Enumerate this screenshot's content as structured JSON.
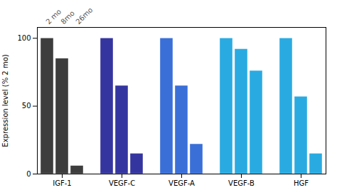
{
  "chart_data": {
    "type": "bar",
    "categories": [
      "IGF-1",
      "VEGF-C",
      "VEGF-A",
      "VEGF-B",
      "HGF"
    ],
    "series": [
      {
        "name": "2 mo",
        "values": [
          100,
          100,
          100,
          100,
          100
        ],
        "colors": [
          "#3d3d3d",
          "#3535a0",
          "#3a6fd8",
          "#29abe2",
          "#29abe2"
        ]
      },
      {
        "name": "8mo",
        "values": [
          85,
          65,
          65,
          92,
          57
        ],
        "colors": [
          "#3d3d3d",
          "#3535a0",
          "#3a6fd8",
          "#29abe2",
          "#29abe2"
        ]
      },
      {
        "name": "26mo",
        "values": [
          6,
          15,
          22,
          76,
          15
        ],
        "colors": [
          "#3d3d3d",
          "#3535a0",
          "#3a6fd8",
          "#29abe2",
          "#29abe2"
        ]
      }
    ],
    "ylabel": "Expression level (% 2 mo)",
    "ylim": [
      0,
      108
    ],
    "yticks": [
      0,
      50,
      100
    ],
    "legend": "upper left",
    "grid": false
  }
}
